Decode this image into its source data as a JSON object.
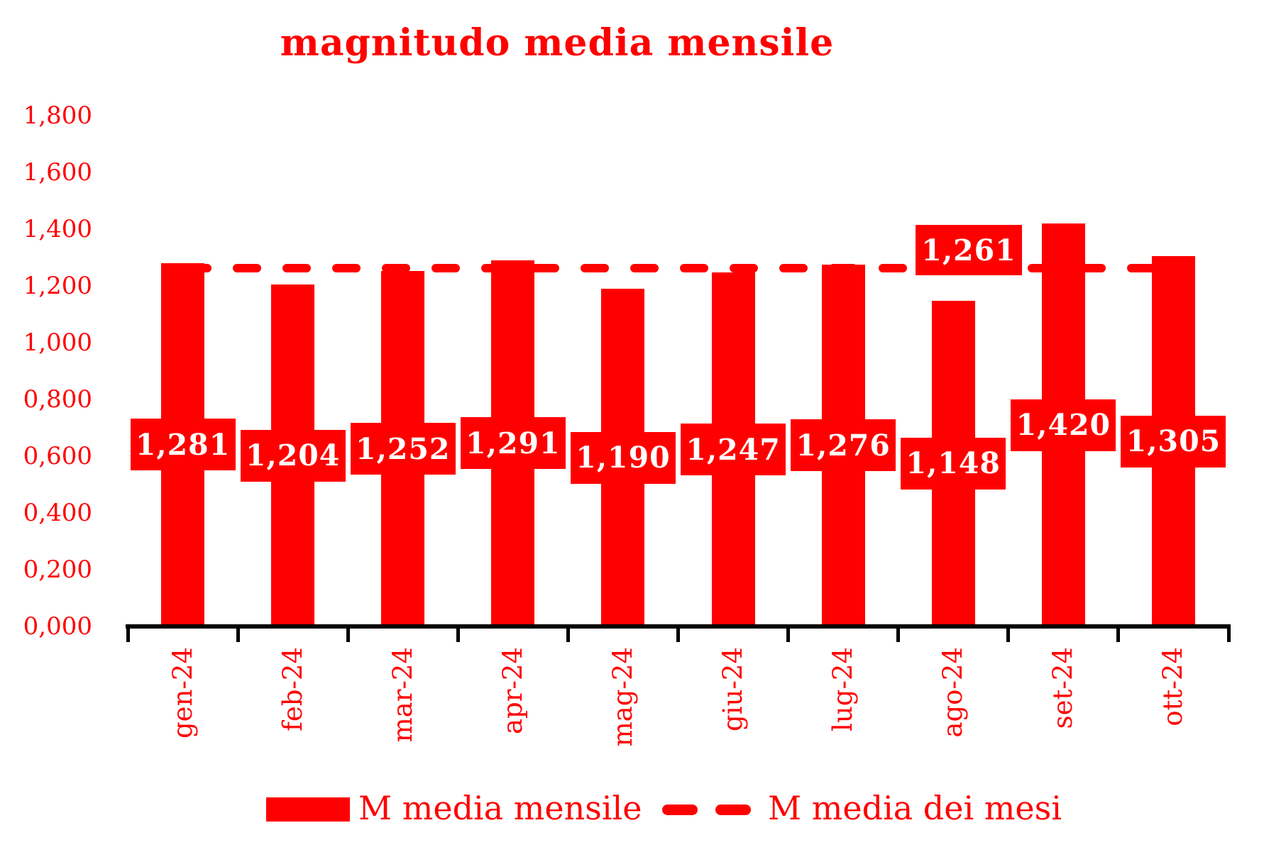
{
  "title": "magnitudo media mensile",
  "colors": {
    "series_red": "#FF0000",
    "value_label_text": "#FFFFFF",
    "axis_black": "#000000"
  },
  "legend": {
    "items": [
      {
        "label": "M media mensile",
        "swatch": "bar"
      },
      {
        "label": "M media dei mesi",
        "swatch": "dashed-line"
      }
    ]
  },
  "chart_data": {
    "type": "bar",
    "title": "magnitudo media mensile",
    "categories": [
      "gen-24",
      "feb-24",
      "mar-24",
      "apr-24",
      "mag-24",
      "giu-24",
      "lug-24",
      "ago-24",
      "set-24",
      "ott-24"
    ],
    "series": [
      {
        "name": "M media mensile",
        "values": [
          1.281,
          1.204,
          1.252,
          1.291,
          1.19,
          1.247,
          1.276,
          1.148,
          1.42,
          1.305
        ]
      }
    ],
    "value_labels": [
      "1,281",
      "1,204",
      "1,252",
      "1,291",
      "1,190",
      "1,247",
      "1,276",
      "1,148",
      "1,420",
      "1,305"
    ],
    "mean_line": {
      "name": "M media dei mesi",
      "value": 1.261,
      "label": "1,261"
    },
    "ylim": [
      0,
      1.8
    ],
    "ytick_step": 0.2,
    "ytick_labels": [
      "0,000",
      "0,200",
      "0,400",
      "0,600",
      "0,800",
      "1,000",
      "1,200",
      "1,400",
      "1,600",
      "1,800"
    ],
    "decimal_separator": ",",
    "grid": false,
    "legend_position": "bottom"
  }
}
